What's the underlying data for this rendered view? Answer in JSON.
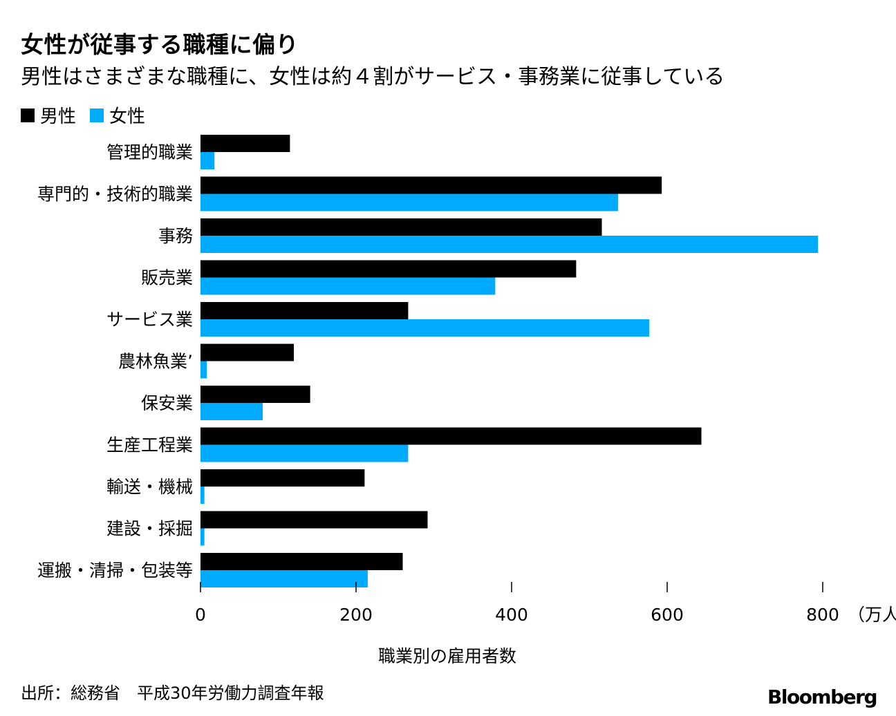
{
  "chart_data": {
    "type": "bar",
    "orientation": "horizontal",
    "title": "女性が従事する職種に偏り",
    "subtitle": "男性はさまざまな職種に、女性は約４割がサービス・事務業に従事している",
    "xlabel": "職業別の雇用者数",
    "ylabel": "",
    "unit_label": "（万人）",
    "xlim": [
      0,
      880
    ],
    "xticks": [
      0,
      200,
      400,
      600,
      800
    ],
    "categories": [
      "管理的職業",
      "専門的・技術的職業",
      "事務",
      "販売業",
      "サービス業",
      "農林魚業’",
      "保安業",
      "生産工程業",
      "輸送・機械",
      "建設・採掘",
      "運搬・清掃・包装等"
    ],
    "series": [
      {
        "name": "男性",
        "color": "#000000",
        "values": [
          115,
          593,
          516,
          483,
          267,
          120,
          141,
          644,
          211,
          292,
          260
        ]
      },
      {
        "name": "女性",
        "color": "#00aaff",
        "values": [
          18,
          537,
          794,
          379,
          577,
          8,
          80,
          267,
          5,
          5,
          215
        ]
      }
    ],
    "legend": "top-left",
    "grid": false
  },
  "source": "出所：総務省　平成30年労働力調査年報",
  "brand": "Bloomberg"
}
